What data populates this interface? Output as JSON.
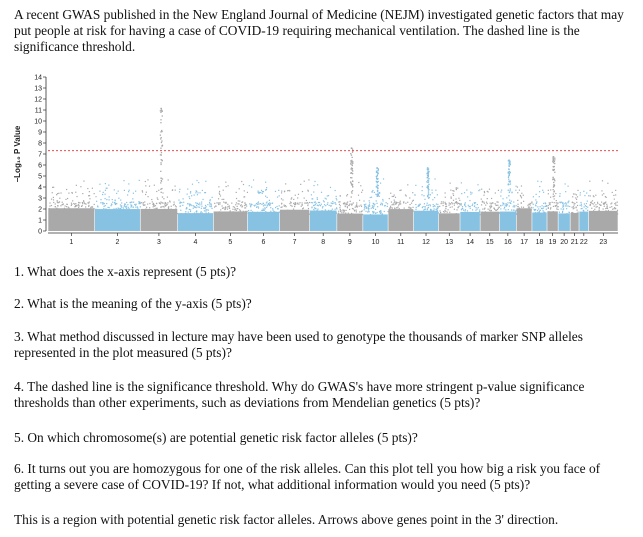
{
  "intro": "A recent GWAS published in the New England Journal of Medicine (NEJM) investigated genetic factors that may put people at risk for having a case of COVID-19 requiring mechanical ventilation. The dashed line is the significance threshold.",
  "chart_data": {
    "type": "scatter",
    "subtype": "manhattan",
    "title": "",
    "xlabel": "",
    "ylabel": "–Log₁₀ P Value",
    "ylim": [
      0,
      14
    ],
    "yticks": [
      "0",
      "1",
      "2",
      "3",
      "4",
      "5",
      "6",
      "7",
      "8",
      "9",
      "10",
      "11",
      "12",
      "13",
      "14"
    ],
    "threshold": 7.3,
    "threshold_style": "dashed",
    "chromosomes": [
      "1",
      "2",
      "3",
      "4",
      "5",
      "6",
      "7",
      "8",
      "9",
      "10",
      "11",
      "12",
      "13",
      "14",
      "15",
      "16",
      "17",
      "18",
      "19",
      "20",
      "21",
      "22",
      "23"
    ],
    "chromosome_widths": [
      248,
      242,
      198,
      190,
      181,
      171,
      159,
      145,
      138,
      134,
      135,
      133,
      114,
      107,
      102,
      90,
      83,
      80,
      59,
      64,
      47,
      51,
      156
    ],
    "series_colors": [
      "#a9a9a9",
      "#87c2e3"
    ],
    "threshold_color": "#e8302e",
    "peaks": [
      {
        "chromosome": "3",
        "value": 11.2
      },
      {
        "chromosome": "9",
        "value": 7.6
      },
      {
        "chromosome": "10",
        "value": 5.8
      },
      {
        "chromosome": "12",
        "value": 5.8
      },
      {
        "chromosome": "16",
        "value": 6.5
      },
      {
        "chromosome": "19",
        "value": 6.8
      }
    ]
  },
  "questions": [
    "1. What does the x-axis represent (5 pts)?",
    "2. What is the meaning of the y-axis (5 pts)?",
    "3. What method discussed in lecture may have been used to genotype the thousands of marker SNP alleles represented in the plot measured (5 pts)?",
    "4. The dashed line is the significance threshold. Why do GWAS's have more stringent p-value significance thresholds than other experiments, such as deviations from Mendelian genetics (5 pts)?",
    "5. On which chromosome(s) are potential genetic risk factor alleles (5 pts)?",
    "6. It turns out you are homozygous for one of the risk alleles. Can this plot tell you how big a risk you face of getting a severe case of COVID-19? If not, what additional information would you need (5 pts)?",
    "This is a region with potential genetic risk factor alleles. Arrows above genes point in the 3' direction."
  ]
}
